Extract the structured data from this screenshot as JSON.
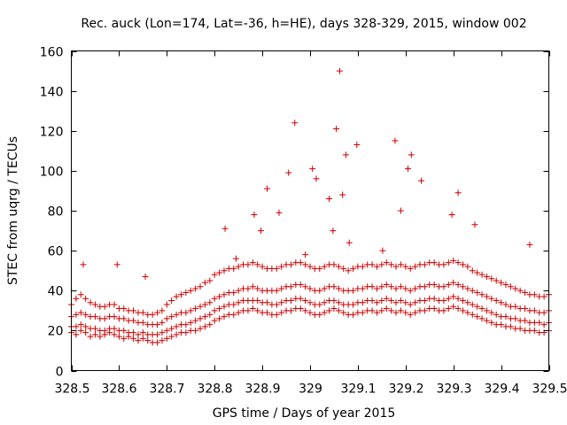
{
  "chart_data": {
    "type": "scatter",
    "title": "Rec. auck (Lon=174, Lat=-36, h=HE), days 328-329, 2015, window 002",
    "xlabel": "GPS time / Days of year 2015",
    "ylabel": "STEC from uqrg / TECUs",
    "xlim": [
      328.5,
      329.5
    ],
    "ylim": [
      0,
      160
    ],
    "xticks": [
      328.5,
      328.6,
      328.7,
      328.8,
      328.9,
      329.0,
      329.1,
      329.2,
      329.3,
      329.4,
      329.5
    ],
    "xtick_labels": [
      "328.5",
      "328.6",
      "328.7",
      "328.8",
      "328.9",
      "329",
      "329.1",
      "329.2",
      "329.3",
      "329.4",
      "329.5"
    ],
    "yticks": [
      0,
      20,
      40,
      60,
      80,
      100,
      120,
      140,
      160
    ],
    "ytick_labels": [
      "0",
      "20",
      "40",
      "60",
      "80",
      "100",
      "120",
      "140",
      "160"
    ],
    "grid": false,
    "marker": "+",
    "color": "#cc0000",
    "series": [
      {
        "name": "STEC",
        "x": [
          328.5,
          328.51,
          328.52,
          328.53,
          328.54,
          328.55,
          328.56,
          328.57,
          328.58,
          328.59,
          328.6,
          328.61,
          328.62,
          328.63,
          328.64,
          328.65,
          328.66,
          328.67,
          328.68,
          328.69,
          328.7,
          328.71,
          328.72,
          328.73,
          328.74,
          328.75,
          328.76,
          328.77,
          328.78,
          328.79,
          328.8,
          328.81,
          328.82,
          328.83,
          328.84,
          328.85,
          328.86,
          328.87,
          328.88,
          328.89,
          328.9,
          328.91,
          328.92,
          328.93,
          328.94,
          328.95,
          328.96,
          328.97,
          328.98,
          328.99,
          329.0,
          329.01,
          329.02,
          329.03,
          329.04,
          329.05,
          329.06,
          329.07,
          329.08,
          329.09,
          329.1,
          329.11,
          329.12,
          329.13,
          329.14,
          329.15,
          329.16,
          329.17,
          329.18,
          329.19,
          329.2,
          329.21,
          329.22,
          329.23,
          329.24,
          329.25,
          329.26,
          329.27,
          329.28,
          329.29,
          329.3,
          329.31,
          329.32,
          329.33,
          329.34,
          329.35,
          329.36,
          329.37,
          329.38,
          329.39,
          329.4,
          329.41,
          329.42,
          329.43,
          329.44,
          329.45,
          329.46,
          329.47,
          329.48,
          329.49,
          329.5,
          328.5,
          328.51,
          328.52,
          328.53,
          328.54,
          328.55,
          328.56,
          328.57,
          328.58,
          328.59,
          328.6,
          328.61,
          328.62,
          328.63,
          328.64,
          328.65,
          328.66,
          328.67,
          328.68,
          328.69,
          328.7,
          328.71,
          328.72,
          328.73,
          328.74,
          328.75,
          328.76,
          328.77,
          328.78,
          328.79,
          328.8,
          328.81,
          328.82,
          328.83,
          328.84,
          328.85,
          328.86,
          328.87,
          328.88,
          328.89,
          328.9,
          328.91,
          328.92,
          328.93,
          328.94,
          328.95,
          328.96,
          328.97,
          328.98,
          328.99,
          329.0,
          329.01,
          329.02,
          329.03,
          329.04,
          329.05,
          329.06,
          329.07,
          329.08,
          329.09,
          329.1,
          329.11,
          329.12,
          329.13,
          329.14,
          329.15,
          329.16,
          329.17,
          329.18,
          329.19,
          329.2,
          329.21,
          329.22,
          329.23,
          329.24,
          329.25,
          329.26,
          329.27,
          329.28,
          329.29,
          329.3,
          329.31,
          329.32,
          329.33,
          329.34,
          329.35,
          329.36,
          329.37,
          329.38,
          329.39,
          329.4,
          329.41,
          329.42,
          329.43,
          329.44,
          329.45,
          329.46,
          329.47,
          329.48,
          329.49,
          329.5,
          328.5,
          328.51,
          328.52,
          328.53,
          328.54,
          328.55,
          328.56,
          328.57,
          328.58,
          328.59,
          328.6,
          328.61,
          328.62,
          328.63,
          328.64,
          328.65,
          328.66,
          328.67,
          328.68,
          328.69,
          328.7,
          328.71,
          328.72,
          328.73,
          328.74,
          328.75,
          328.76,
          328.77,
          328.78,
          328.79,
          328.8,
          328.81,
          328.82,
          328.83,
          328.84,
          328.85,
          328.86,
          328.87,
          328.88,
          328.89,
          328.9,
          328.91,
          328.92,
          328.93,
          328.94,
          328.95,
          328.96,
          328.97,
          328.98,
          328.99,
          329.0,
          329.01,
          329.02,
          329.03,
          329.04,
          329.05,
          329.06,
          329.07,
          329.08,
          329.09,
          329.1,
          329.11,
          329.12,
          329.13,
          329.14,
          329.15,
          329.16,
          329.17,
          329.18,
          329.19,
          329.2,
          329.21,
          329.22,
          329.23,
          329.24,
          329.25,
          329.26,
          329.27,
          329.28,
          329.29,
          329.3,
          329.31,
          329.32,
          329.33,
          329.34,
          329.35,
          329.36,
          329.37,
          329.38,
          329.39,
          329.4,
          329.41,
          329.42,
          329.43,
          329.44,
          329.45,
          329.46,
          329.47,
          329.48,
          329.49,
          329.5,
          328.5,
          328.51,
          328.52,
          328.53,
          328.54,
          328.55,
          328.56,
          328.57,
          328.58,
          328.59,
          328.6,
          328.61,
          328.62,
          328.63,
          328.64,
          328.65,
          328.66,
          328.67,
          328.68,
          328.69,
          328.7,
          328.71,
          328.72,
          328.73,
          328.74,
          328.75,
          328.76,
          328.77,
          328.78,
          328.79,
          328.8,
          328.81,
          328.82,
          328.83,
          328.84,
          328.85,
          328.86,
          328.87,
          328.88,
          328.89,
          328.9,
          328.91,
          328.92,
          328.93,
          328.94,
          328.95,
          328.96,
          328.97,
          328.98,
          328.99,
          329.0,
          329.01,
          329.02,
          329.03,
          329.04,
          329.05,
          329.06,
          329.07,
          329.08,
          329.09,
          329.1,
          329.11,
          329.12,
          329.13,
          329.14,
          329.15,
          329.16,
          329.17,
          329.18,
          329.19,
          329.2,
          329.21,
          329.22,
          329.23,
          329.24,
          329.25,
          329.26,
          329.27,
          329.28,
          329.29,
          329.3,
          329.31,
          329.32,
          329.33,
          329.34,
          329.35,
          329.36,
          329.37,
          329.38,
          329.39,
          329.4,
          329.41,
          329.42,
          329.43,
          329.44,
          329.45,
          329.46,
          329.47,
          329.48,
          329.49,
          329.5,
          328.525,
          328.596,
          328.655,
          328.822,
          328.845,
          328.883,
          328.897,
          328.91,
          328.935,
          328.955,
          328.968,
          328.99,
          329.005,
          329.013,
          329.04,
          329.048,
          329.055,
          329.062,
          329.068,
          329.075,
          329.082,
          329.098,
          329.152,
          329.178,
          329.19,
          329.205,
          329.212,
          329.233,
          329.297,
          329.31,
          329.345,
          329.46
        ],
        "y": [
          19,
          18,
          20,
          19,
          17,
          18,
          17,
          18,
          19,
          18,
          17,
          16,
          17,
          16,
          15,
          16,
          15,
          14,
          14,
          15,
          16,
          17,
          18,
          19,
          19,
          20,
          20,
          21,
          22,
          23,
          25,
          26,
          27,
          28,
          28,
          29,
          30,
          30,
          31,
          30,
          29,
          29,
          28,
          28,
          29,
          30,
          30,
          31,
          31,
          30,
          29,
          28,
          28,
          29,
          30,
          31,
          30,
          29,
          28,
          28,
          29,
          29,
          30,
          30,
          29,
          30,
          31,
          30,
          29,
          30,
          29,
          28,
          29,
          30,
          30,
          31,
          31,
          30,
          30,
          31,
          32,
          31,
          30,
          29,
          28,
          27,
          26,
          25,
          24,
          23,
          23,
          22,
          22,
          21,
          21,
          20,
          20,
          20,
          19,
          19,
          20,
          22,
          22,
          23,
          22,
          21,
          21,
          20,
          20,
          21,
          21,
          20,
          20,
          19,
          19,
          18,
          19,
          18,
          18,
          18,
          19,
          20,
          21,
          22,
          23,
          23,
          24,
          25,
          26,
          27,
          28,
          30,
          31,
          32,
          33,
          33,
          34,
          35,
          35,
          35,
          35,
          34,
          34,
          33,
          33,
          34,
          35,
          35,
          36,
          36,
          35,
          34,
          33,
          33,
          34,
          35,
          35,
          34,
          33,
          33,
          33,
          34,
          34,
          35,
          35,
          34,
          35,
          36,
          35,
          34,
          35,
          34,
          33,
          34,
          35,
          35,
          36,
          36,
          35,
          35,
          36,
          37,
          36,
          35,
          34,
          33,
          32,
          31,
          30,
          29,
          28,
          27,
          27,
          26,
          26,
          25,
          25,
          24,
          24,
          24,
          23,
          24,
          27,
          28,
          29,
          28,
          27,
          27,
          26,
          26,
          27,
          27,
          26,
          26,
          25,
          25,
          24,
          24,
          23,
          23,
          23,
          24,
          26,
          27,
          28,
          29,
          29,
          30,
          31,
          32,
          33,
          34,
          36,
          37,
          38,
          39,
          39,
          40,
          41,
          41,
          42,
          41,
          40,
          40,
          40,
          40,
          41,
          42,
          42,
          43,
          43,
          42,
          41,
          40,
          40,
          41,
          42,
          42,
          41,
          40,
          40,
          40,
          41,
          41,
          42,
          42,
          41,
          42,
          43,
          42,
          41,
          42,
          41,
          40,
          41,
          42,
          42,
          43,
          43,
          42,
          42,
          43,
          44,
          43,
          42,
          41,
          40,
          39,
          38,
          37,
          36,
          35,
          34,
          33,
          32,
          32,
          31,
          31,
          30,
          30,
          29,
          29,
          30,
          33,
          36,
          38,
          36,
          34,
          33,
          32,
          32,
          33,
          33,
          31,
          31,
          30,
          30,
          29,
          29,
          28,
          28,
          29,
          30,
          33,
          35,
          37,
          38,
          39,
          40,
          41,
          42,
          44,
          45,
          48,
          49,
          50,
          51,
          51,
          52,
          53,
          53,
          54,
          53,
          52,
          51,
          51,
          51,
          52,
          53,
          53,
          54,
          54,
          53,
          52,
          51,
          51,
          52,
          53,
          53,
          52,
          51,
          50,
          51,
          52,
          52,
          53,
          53,
          52,
          53,
          54,
          53,
          52,
          53,
          52,
          51,
          52,
          53,
          53,
          54,
          54,
          53,
          53,
          54,
          55,
          54,
          53,
          52,
          50,
          49,
          48,
          47,
          46,
          45,
          44,
          43,
          42,
          41,
          40,
          39,
          38,
          38,
          37,
          37,
          38,
          53,
          53,
          47,
          71,
          56,
          78,
          70,
          91,
          79,
          99,
          124,
          58,
          101,
          96,
          86,
          70,
          121,
          150,
          88,
          108,
          64,
          113,
          60,
          115,
          80,
          101,
          108,
          95,
          78,
          89,
          73,
          63
        ]
      }
    ]
  }
}
